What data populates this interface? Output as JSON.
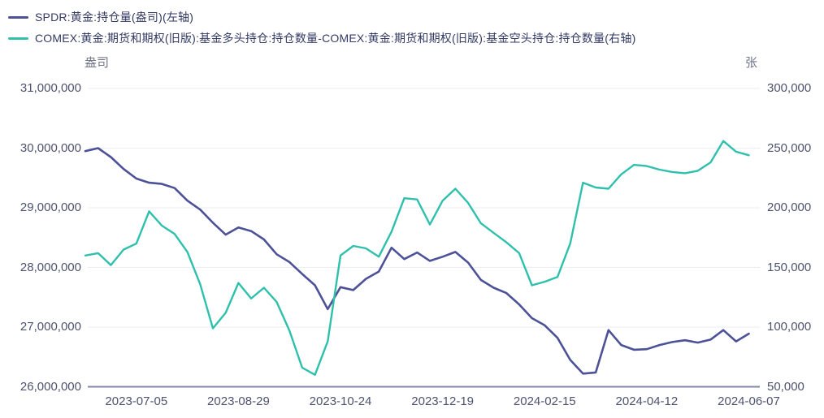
{
  "legend": [
    {
      "label": "SPDR:黄金:持仓量(盎司)(左轴)",
      "color": "#4c5198"
    },
    {
      "label": "COMEX:黄金:期货和期权(旧版):基金多头持仓:持仓数量-COMEX:黄金:期货和期权(旧版):基金空头持仓:持仓数量(右轴)",
      "color": "#2fc0ac"
    }
  ],
  "axes": {
    "left_unit": "盎司",
    "right_unit": "张",
    "left_ticks": [
      "31,000,000",
      "30,000,000",
      "29,000,000",
      "28,000,000",
      "27,000,000",
      "26,000,000"
    ],
    "right_ticks": [
      "300,000",
      "250,000",
      "200,000",
      "150,000",
      "100,000",
      "50,000"
    ],
    "x_ticks": [
      "2023-07-05",
      "2023-08-29",
      "2023-10-24",
      "2023-12-19",
      "2024-02-15",
      "2024-04-12",
      "2024-06-07"
    ]
  },
  "colors": {
    "spdr_line": "#4c5198",
    "comex_line": "#2fc0ac",
    "grid_line": "#ebedf5",
    "axis_baseline": "#8287a8",
    "tick_text": "#4d536e",
    "unit_text": "#717689",
    "legend_text": "#333a63",
    "background": "#ffffff"
  },
  "chart_data": {
    "type": "line",
    "title": "",
    "xlabel": "",
    "x_tick_labels": [
      "2023-07-05",
      "2023-08-29",
      "2023-10-24",
      "2023-12-19",
      "2024-02-15",
      "2024-04-12",
      "2024-06-07"
    ],
    "x_tick_indices": [
      4,
      12,
      20,
      28,
      36,
      44,
      52
    ],
    "grid": "horizontal-only",
    "legend_position": "top-left",
    "left_axis": {
      "unit": "盎司",
      "min": 26000000,
      "max": 31000000,
      "tick_step": 1000000
    },
    "right_axis": {
      "unit": "张",
      "min": 50000,
      "max": 300000,
      "tick_step": 50000
    },
    "series": [
      {
        "name": "SPDR:黄金:持仓量(盎司)(左轴)",
        "axis": "left",
        "color": "#4c5198",
        "unit": "million ounces",
        "values_million_oz": [
          29.95,
          30.0,
          29.85,
          29.65,
          29.49,
          29.42,
          29.4,
          29.33,
          29.12,
          28.97,
          28.75,
          28.55,
          28.67,
          28.61,
          28.47,
          28.22,
          28.09,
          27.89,
          27.7,
          27.3,
          27.67,
          27.62,
          27.81,
          27.93,
          28.33,
          28.14,
          28.25,
          28.11,
          28.18,
          28.26,
          28.08,
          27.79,
          27.66,
          27.57,
          27.38,
          27.15,
          27.03,
          26.82,
          26.45,
          26.22,
          26.24,
          26.95,
          26.7,
          26.62,
          26.63,
          26.7,
          26.75,
          26.78,
          26.74,
          26.79,
          26.95,
          26.76,
          26.89
        ]
      },
      {
        "name": "COMEX:黄金:期货和期权(旧版):基金多头持仓:持仓数量-COMEX:黄金:期货和期权(旧版):基金空头持仓:持仓数量(右轴)",
        "axis": "right",
        "color": "#2fc0ac",
        "unit": "contracts (张)",
        "values_contracts": [
          160000,
          162000,
          152000,
          165000,
          170000,
          197000,
          185000,
          178000,
          163000,
          136000,
          99000,
          112000,
          137000,
          124000,
          133000,
          121000,
          97000,
          66000,
          60000,
          88000,
          160000,
          168000,
          166000,
          159000,
          180000,
          208000,
          207000,
          186000,
          206000,
          216000,
          204000,
          187000,
          179000,
          171000,
          162000,
          135000,
          138000,
          142000,
          170000,
          221000,
          217000,
          216000,
          228000,
          236000,
          235000,
          232000,
          230000,
          229000,
          231000,
          238000,
          256000,
          247000,
          244000
        ]
      }
    ]
  }
}
